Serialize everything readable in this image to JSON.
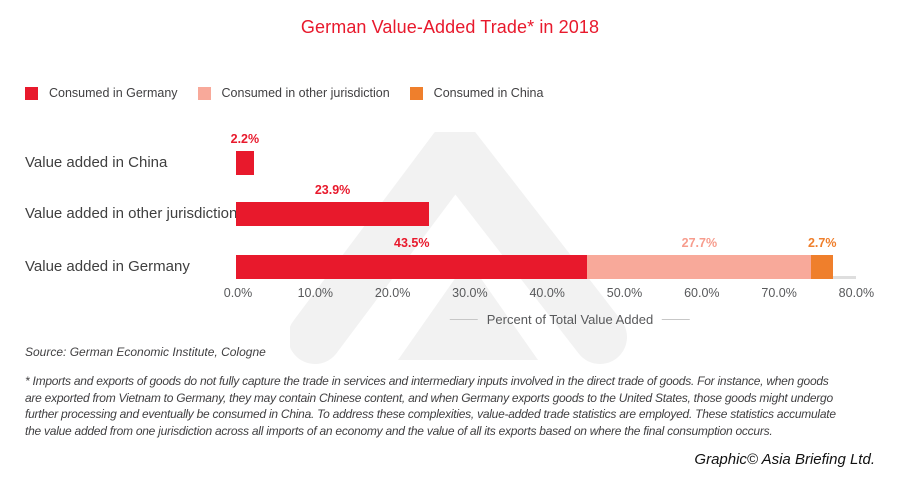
{
  "title": "German Value-Added Trade* in 2018",
  "colors": {
    "red": "#e8192c",
    "salmon": "#f8a99a",
    "orange": "#ef7f2c",
    "axis_text": "#58595b",
    "baseline": "#dedede",
    "watermark": "#f2f2f2"
  },
  "chart_data": {
    "type": "bar",
    "orientation": "horizontal",
    "stacked": true,
    "categories": [
      "Value added in China",
      "Value added in other jurisdictions",
      "Value added in Germany"
    ],
    "series": [
      {
        "name": "Consumed in Germany",
        "color": "#e8192c",
        "label_color": "#e8192c",
        "values": [
          2.2,
          23.9,
          43.5
        ],
        "labels": [
          "2.2%",
          "23.9%",
          "43.5%"
        ]
      },
      {
        "name": "Consumed in other jurisdiction",
        "color": "#f8a99a",
        "label_color": "#f79c8d",
        "values": [
          null,
          null,
          27.7
        ],
        "labels": [
          null,
          null,
          "27.7%"
        ]
      },
      {
        "name": "Consumed in China",
        "color": "#ef7f2c",
        "label_color": "#ef7f2c",
        "values": [
          null,
          null,
          2.7
        ],
        "labels": [
          null,
          null,
          "2.7%"
        ]
      }
    ],
    "xlabel": "Percent of Total Value Added",
    "x_ticks": [
      "0.0%",
      "10.0%",
      "20.0%",
      "30.0%",
      "40.0%",
      "50.0%",
      "60.0%",
      "70.0%",
      "80.0%"
    ],
    "xlim": [
      0,
      80
    ],
    "grid": false,
    "legend_position": "top-left"
  },
  "source": "Source: German Economic Institute, Cologne",
  "footnote_lines": [
    "* Imports and exports of goods do not fully capture the trade in services and intermediary inputs involved in the direct trade of goods. For instance, when goods",
    "are exported from Vietnam to Germany, they may contain Chinese content, and when Germany exports goods to the United States, those goods might undergo",
    "further processing and eventually be consumed in China. To address these complexities, value-added trade statistics are employed. These statistics accumulate",
    "the value added from one jurisdiction across all imports of an economy and the value of all its exports based on where the final consumption occurs."
  ],
  "credit": "Graphic© Asia Briefing Ltd."
}
